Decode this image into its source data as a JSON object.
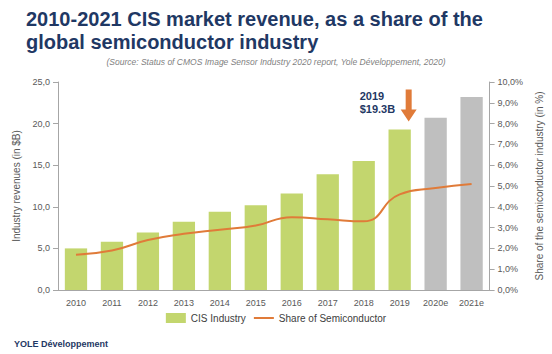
{
  "chart_data": {
    "type": "bar",
    "title": "2010-2021 CIS market revenue, as a share of the global semiconductor industry",
    "subtitle": "(Source: Status of CMOS Image Sensor Industry 2020 report, Yole Développement, 2020)",
    "y_label": "Industry revenues (in $B)",
    "y2_label": "Share of the semiconductor industry (in %)",
    "categories": [
      "2010",
      "2011",
      "2012",
      "2013",
      "2014",
      "2015",
      "2016",
      "2017",
      "2018",
      "2019",
      "2020e",
      "2021e"
    ],
    "series": [
      {
        "name": "CIS Industry",
        "type": "bar",
        "color": "#c3d66e",
        "colors": [
          "#c3d66e",
          "#c3d66e",
          "#c3d66e",
          "#c3d66e",
          "#c3d66e",
          "#c3d66e",
          "#c3d66e",
          "#c3d66e",
          "#c3d66e",
          "#c3d66e",
          "#bfbfbf",
          "#bfbfbf"
        ],
        "values": [
          5.0,
          5.8,
          6.9,
          8.2,
          9.4,
          10.2,
          11.6,
          13.9,
          15.5,
          19.3,
          20.7,
          23.2
        ]
      },
      {
        "name": "Share of Semiconductor",
        "type": "line",
        "axis": "y2",
        "color": "#e07b39",
        "line_style": "solid",
        "values": [
          1.7,
          1.9,
          2.4,
          2.7,
          2.9,
          3.1,
          3.5,
          3.4,
          3.3,
          4.6,
          4.9,
          5.1
        ]
      }
    ],
    "ylim": [
      0,
      25
    ],
    "yticks": [
      {
        "value": 0,
        "label": "0,0"
      },
      {
        "value": 5,
        "label": "5,0"
      },
      {
        "value": 10,
        "label": "10,0"
      },
      {
        "value": 15,
        "label": "15,0"
      },
      {
        "value": 20,
        "label": "20,0"
      },
      {
        "value": 25,
        "label": "25,0"
      }
    ],
    "y2lim": [
      0,
      10
    ],
    "y2ticks": [
      {
        "value": 0,
        "label": "0,0%"
      },
      {
        "value": 1,
        "label": "1,0%"
      },
      {
        "value": 2,
        "label": "2,0%"
      },
      {
        "value": 3,
        "label": "3,0%"
      },
      {
        "value": 4,
        "label": "4,0%"
      },
      {
        "value": 5,
        "label": "5,0%"
      },
      {
        "value": 6,
        "label": "6,0%"
      },
      {
        "value": 7,
        "label": "7,0%"
      },
      {
        "value": 8,
        "label": "8,0%"
      },
      {
        "value": 9,
        "label": "9,0%"
      },
      {
        "value": 10,
        "label": "10,0%"
      }
    ],
    "annotation": {
      "category": "2019",
      "value": 19.3,
      "lines": [
        "2019",
        "$19.3B"
      ]
    },
    "logo": "YOLE Développement",
    "grid": false,
    "legend": "bottom"
  }
}
